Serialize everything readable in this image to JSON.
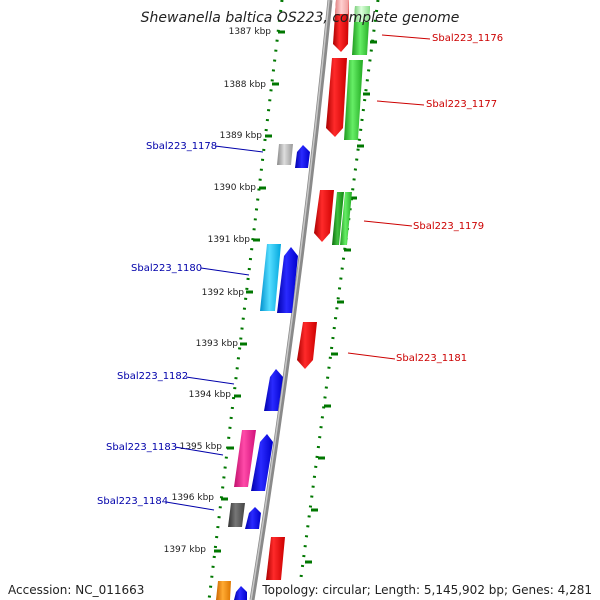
{
  "title": "Shewanella baltica OS223, complete genome",
  "accession": "Accession: NC_011663",
  "summary": "Topology: circular; Length: 5,145,902 bp; Genes: 4,281",
  "kbp_ticks": [
    "1387 kbp",
    "1388 kbp",
    "1389 kbp",
    "1390 kbp",
    "1391 kbp",
    "1392 kbp",
    "1393 kbp",
    "1394 kbp",
    "1395 kbp",
    "1396 kbp",
    "1397 kbp"
  ],
  "gene_labels_left": [
    {
      "text": "Sbal223_1178",
      "color": "#0000aa"
    },
    {
      "text": "Sbal223_1180",
      "color": "#0000aa"
    },
    {
      "text": "Sbal223_1182",
      "color": "#0000aa"
    },
    {
      "text": "Sbal223_1183",
      "color": "#0000aa"
    },
    {
      "text": "Sbal223_1184",
      "color": "#0000aa"
    }
  ],
  "gene_labels_right": [
    {
      "text": "Sbal223_1176",
      "color": "#cc0000"
    },
    {
      "text": "Sbal223_1177",
      "color": "#cc0000"
    },
    {
      "text": "Sbal223_1179",
      "color": "#cc0000"
    },
    {
      "text": "Sbal223_1181",
      "color": "#cc0000"
    }
  ],
  "colors": {
    "axis": "#888888",
    "tick": "#007700",
    "red": "#ff0000",
    "green": "#33cc33",
    "blue": "#0000ff",
    "cyan": "#00bfff",
    "magenta": "#ff1493",
    "gray": "#999999",
    "darkgray": "#555555",
    "orange": "#ff8c00",
    "pink": "#ffaaaa"
  }
}
